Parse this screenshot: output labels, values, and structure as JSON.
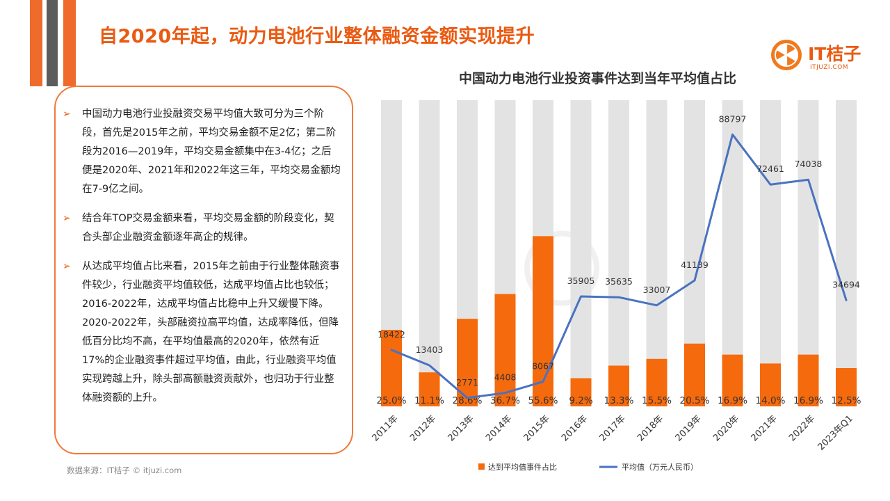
{
  "page": {
    "title": "自2020年起，动力电池行业整体融资金额实现提升",
    "source": "数据来源：IT桔子 © itjuzi.com"
  },
  "logo": {
    "text": "IT桔子",
    "sub": "ITJUZI.COM"
  },
  "bullets": [
    "中国动力电池行业投融资交易平均值大致可分为三个阶段，首先是2015年之前，平均交易金额不足2亿；第二阶段为2016—2019年，平均交易金额集中在3-4亿；之后便是2020年、2021年和2022年这三年，平均交易金额均在7-9亿之间。",
    "结合年TOP交易金额来看，平均交易金额的阶段变化，契合头部企业融资金额逐年高企的规律。",
    "从达成平均值占比来看，2015年之前由于行业整体融资事件较少，行业融资平均值较低，达成平均值占比也较低；2016-2022年，达成平均值占比稳中上升又缓慢下降。2020-2022年，头部融资拉高平均值，达成率降低，但降低百分比均不高，在平均值最高的2020年，依然有近17%的企业融资事件超过平均值，由此，行业融资平均值实现跨越上升，除头部高额融资贡献外，也归功于行业整体融资额的上升。"
  ],
  "colors": {
    "accent": "#ee6b2c",
    "bar": "#f56a0c",
    "bar_bg": "#e3e3e3",
    "line": "#4a72c0"
  },
  "chart_data": {
    "type": "bar",
    "title": "中国动力电池行业投资事件达到当年平均值占比",
    "categories": [
      "2011年",
      "2012年",
      "2013年",
      "2014年",
      "2015年",
      "2016年",
      "2017年",
      "2018年",
      "2019年",
      "2020年",
      "2021年",
      "2022年",
      "2023年Q1"
    ],
    "series": [
      {
        "name": "达到平均值事件占比",
        "type": "bar",
        "values": [
          25.0,
          11.1,
          28.6,
          36.7,
          55.6,
          9.2,
          13.3,
          15.5,
          20.5,
          16.9,
          14.0,
          16.9,
          12.5
        ],
        "labels": [
          "25.0%",
          "11.1%",
          "28.6%",
          "36.7%",
          "55.6%",
          "9.2%",
          "13.3%",
          "15.5%",
          "20.5%",
          "16.9%",
          "14.0%",
          "16.9%",
          "12.5%"
        ]
      },
      {
        "name": "平均值（万元人民币）",
        "type": "line",
        "values": [
          18422,
          13403,
          2771,
          4408,
          8067,
          35905,
          35635,
          33007,
          41139,
          88797,
          72461,
          74038,
          34694
        ]
      }
    ],
    "ylim": [
      0,
      100
    ],
    "legend": "bottom",
    "grid": false
  }
}
